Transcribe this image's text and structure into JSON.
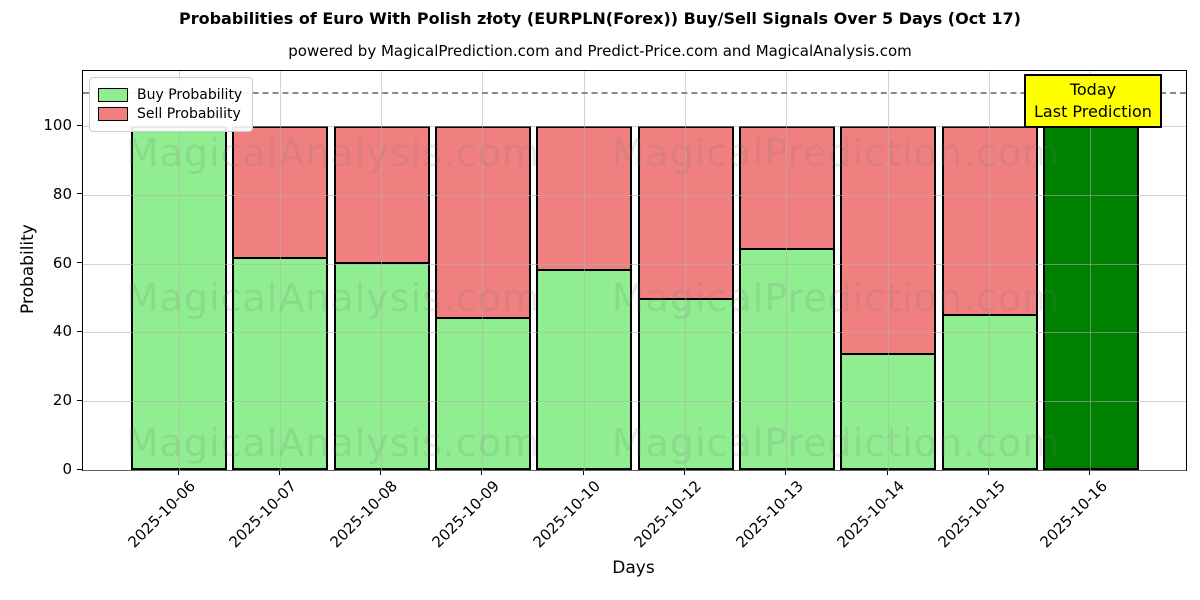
{
  "header": {
    "title": "Probabilities of Euro With Polish złoty (EURPLN(Forex)) Buy/Sell Signals Over 5 Days (Oct 17)",
    "subtitle": "powered by MagicalPrediction.com and Predict-Price.com and MagicalAnalysis.com"
  },
  "chart_data": {
    "type": "bar",
    "stacked": true,
    "title": "Probabilities of Euro With Polish złoty (EURPLN(Forex)) Buy/Sell Signals Over 5 Days (Oct 17)",
    "subtitle": "powered by MagicalPrediction.com and Predict-Price.com and MagicalAnalysis.com",
    "xlabel": "Days",
    "ylabel": "Probability",
    "categories": [
      "2025-10-06",
      "2025-10-07",
      "2025-10-08",
      "2025-10-09",
      "2025-10-10",
      "2025-10-12",
      "2025-10-13",
      "2025-10-14",
      "2025-10-15",
      "2025-10-16"
    ],
    "series": [
      {
        "name": "Buy Probability",
        "color": "#90ee90",
        "values": [
          100,
          62,
          60.5,
          44.5,
          58.5,
          50,
          64.5,
          34,
          45.5,
          100
        ]
      },
      {
        "name": "Sell Probability",
        "color": "#f08080",
        "values": [
          0,
          38,
          39.5,
          55.5,
          41.5,
          50,
          35.5,
          66,
          54.5,
          0
        ]
      }
    ],
    "today_index": 9,
    "today_color": "#008000",
    "ylim": [
      0,
      116
    ],
    "yticks": [
      0,
      20,
      40,
      60,
      80,
      100
    ],
    "grid": true,
    "threshold_line": {
      "value": 110,
      "style": "dashed",
      "color": "#8a8a8a"
    },
    "legend": {
      "position": "upper-left",
      "entries": [
        "Buy Probability",
        "Sell Probability"
      ]
    },
    "annotation": {
      "line1": "Today",
      "line2": "Last Prediction",
      "bg_color": "#ffff00",
      "border_color": "#000000"
    },
    "watermarks": {
      "left_text": "MagicalAnalysis.com",
      "right_text": "MagicalPrediction.com"
    }
  }
}
